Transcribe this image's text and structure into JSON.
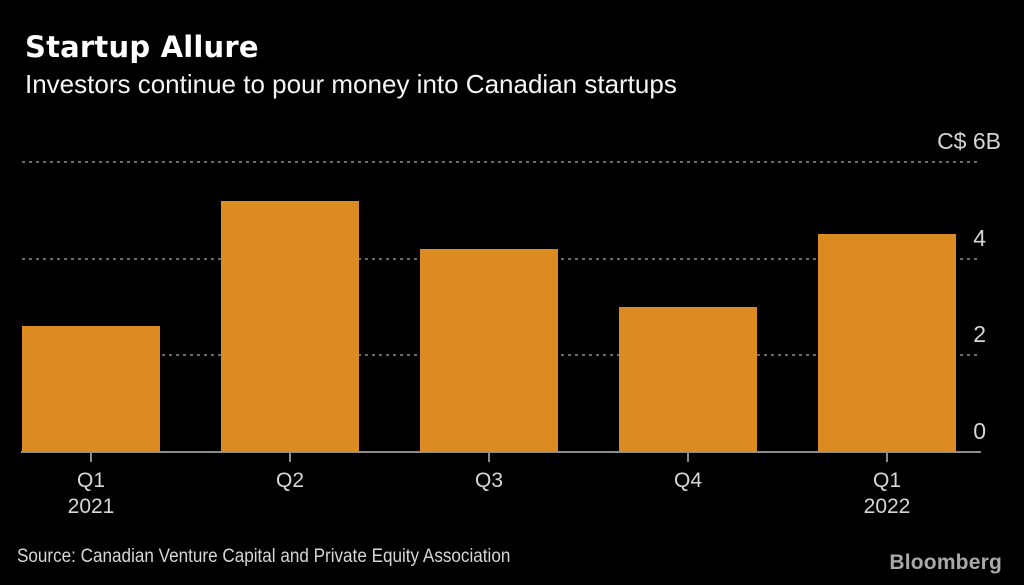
{
  "header": {
    "title": "Startup Allure",
    "subtitle": "Investors continue to pour money into Canadian startups"
  },
  "chart_data": {
    "type": "bar",
    "title": "Startup Allure",
    "subtitle": "Investors continue to pour money into Canadian startups",
    "categories": [
      "Q1 2021",
      "Q2",
      "Q3",
      "Q4",
      "Q1 2022"
    ],
    "values": [
      2.6,
      5.2,
      4.2,
      3.0,
      4.5
    ],
    "unit": "C$ billions",
    "ylim": [
      0,
      6
    ],
    "yticks": [
      {
        "value": 6,
        "label": "C$ 6B"
      },
      {
        "value": 4,
        "label": "4"
      },
      {
        "value": 2,
        "label": "2"
      },
      {
        "value": 0,
        "label": "0"
      }
    ],
    "grid": "horizontal dotted, behind bars",
    "legend": "none",
    "bar_color": "#DC8A22"
  },
  "footer": {
    "source": "Source: Canadian Venture Capital and Private Equity Association",
    "logo": "Bloomberg"
  },
  "colors": {
    "background": "#000000",
    "bar": "#DC8A22",
    "title_text": "#FFFFFF",
    "axis_text": "#D6D6D6",
    "gridline": "#6A6A6A",
    "axis_line": "#8C8C8C",
    "logo_text": "#A9A9A9"
  }
}
